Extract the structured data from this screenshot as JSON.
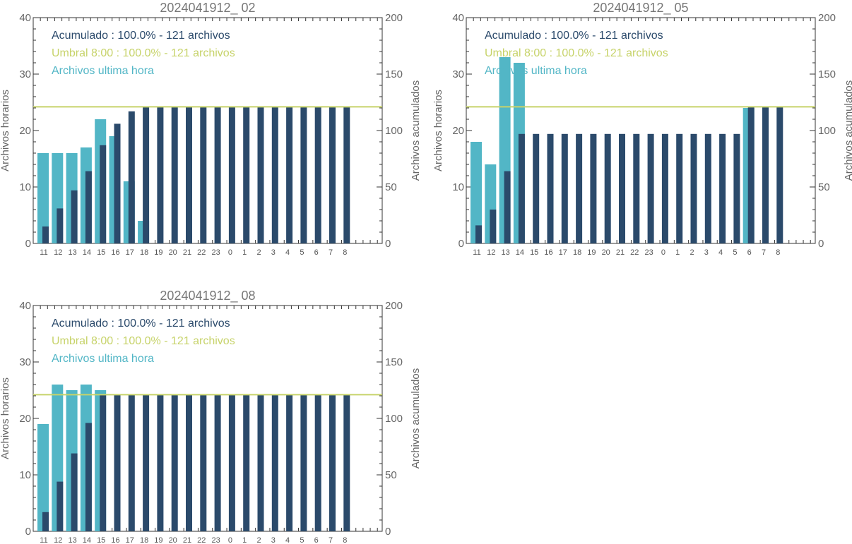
{
  "chart_data": [
    {
      "type": "bar",
      "title": "2024041912_ 02",
      "ylabel_left": "Archivos horarios",
      "ylabel_right": "Archivos acumulados",
      "ylim_left": [
        0,
        40
      ],
      "ylim_right": [
        0,
        200
      ],
      "yticks_left": [
        0,
        10,
        20,
        30,
        40
      ],
      "yticks_right": [
        0,
        50,
        100,
        150,
        200
      ],
      "categories": [
        "11",
        "12",
        "13",
        "14",
        "15",
        "16",
        "17",
        "18",
        "19",
        "20",
        "21",
        "22",
        "23",
        "0",
        "1",
        "2",
        "3",
        "4",
        "5",
        "6",
        "7",
        "8"
      ],
      "series": [
        {
          "name": "Archivos ultima hora",
          "axis": "left",
          "color": "#52b6c6",
          "values": [
            16,
            16,
            16,
            17,
            22,
            19,
            11,
            4,
            0,
            0,
            0,
            0,
            0,
            0,
            0,
            0,
            0,
            0,
            0,
            0,
            0,
            0
          ]
        },
        {
          "name": "Acumulado",
          "axis": "right",
          "color": "#2b4a6b",
          "values": [
            15,
            31,
            47,
            64,
            87,
            106,
            117,
            121,
            121,
            121,
            121,
            121,
            121,
            121,
            121,
            121,
            121,
            121,
            121,
            121,
            121,
            121
          ]
        }
      ],
      "threshold": {
        "axis": "right",
        "value": 121,
        "color": "#c7d36a"
      },
      "legend": [
        {
          "text": "Acumulado : 100.0% - 121 archivos",
          "color": "#2b4a6b"
        },
        {
          "text": "Umbral 8:00 : 100.0% - 121 archivos",
          "color": "#c7d36a"
        },
        {
          "text": "Archivos ultima hora",
          "color": "#52b6c6"
        }
      ],
      "legend_position": "top-left"
    },
    {
      "type": "bar",
      "title": "2024041912_ 05",
      "ylabel_left": "Archivos horarios",
      "ylabel_right": "Archivos acumulados",
      "ylim_left": [
        0,
        40
      ],
      "ylim_right": [
        0,
        200
      ],
      "yticks_left": [
        0,
        10,
        20,
        30,
        40
      ],
      "yticks_right": [
        0,
        50,
        100,
        150,
        200
      ],
      "categories": [
        "11",
        "12",
        "13",
        "14",
        "15",
        "16",
        "17",
        "18",
        "19",
        "20",
        "21",
        "22",
        "23",
        "0",
        "1",
        "2",
        "3",
        "4",
        "5",
        "6",
        "7",
        "8"
      ],
      "series": [
        {
          "name": "Archivos ultima hora",
          "axis": "left",
          "color": "#52b6c6",
          "values": [
            18,
            14,
            33,
            32,
            0,
            0,
            0,
            0,
            0,
            0,
            0,
            0,
            0,
            0,
            0,
            0,
            0,
            0,
            0,
            24,
            0,
            0
          ]
        },
        {
          "name": "Acumulado",
          "axis": "right",
          "color": "#2b4a6b",
          "values": [
            16,
            30,
            64,
            97,
            97,
            97,
            97,
            97,
            97,
            97,
            97,
            97,
            97,
            97,
            97,
            97,
            97,
            97,
            97,
            121,
            121,
            121
          ]
        }
      ],
      "threshold": {
        "axis": "right",
        "value": 121,
        "color": "#c7d36a"
      },
      "legend": [
        {
          "text": "Acumulado : 100.0% - 121 archivos",
          "color": "#2b4a6b"
        },
        {
          "text": "Umbral 8:00 : 100.0% - 121 archivos",
          "color": "#c7d36a"
        },
        {
          "text": "Archivos ultima hora",
          "color": "#52b6c6"
        }
      ],
      "legend_position": "top-left"
    },
    {
      "type": "bar",
      "title": "2024041912_ 08",
      "ylabel_left": "Archivos horarios",
      "ylabel_right": "Archivos acumulados",
      "ylim_left": [
        0,
        40
      ],
      "ylim_right": [
        0,
        200
      ],
      "yticks_left": [
        0,
        10,
        20,
        30,
        40
      ],
      "yticks_right": [
        0,
        50,
        100,
        150,
        200
      ],
      "categories": [
        "11",
        "12",
        "13",
        "14",
        "15",
        "16",
        "17",
        "18",
        "19",
        "20",
        "21",
        "22",
        "23",
        "0",
        "1",
        "2",
        "3",
        "4",
        "5",
        "6",
        "7",
        "8"
      ],
      "series": [
        {
          "name": "Archivos ultima hora",
          "axis": "left",
          "color": "#52b6c6",
          "values": [
            19,
            26,
            25,
            26,
            25,
            0,
            0,
            0,
            0,
            0,
            0,
            0,
            0,
            0,
            0,
            0,
            0,
            0,
            0,
            0,
            0,
            0
          ]
        },
        {
          "name": "Acumulado",
          "axis": "right",
          "color": "#2b4a6b",
          "values": [
            17,
            44,
            69,
            96,
            121,
            121,
            121,
            121,
            121,
            121,
            121,
            121,
            121,
            121,
            121,
            121,
            121,
            121,
            121,
            121,
            121,
            121
          ]
        }
      ],
      "threshold": {
        "axis": "right",
        "value": 121,
        "color": "#c7d36a"
      },
      "legend": [
        {
          "text": "Acumulado : 100.0% - 121 archivos",
          "color": "#2b4a6b"
        },
        {
          "text": "Umbral 8:00 : 100.0% - 121 archivos",
          "color": "#c7d36a"
        },
        {
          "text": "Archivos ultima hora",
          "color": "#52b6c6"
        }
      ],
      "legend_position": "top-left"
    }
  ]
}
